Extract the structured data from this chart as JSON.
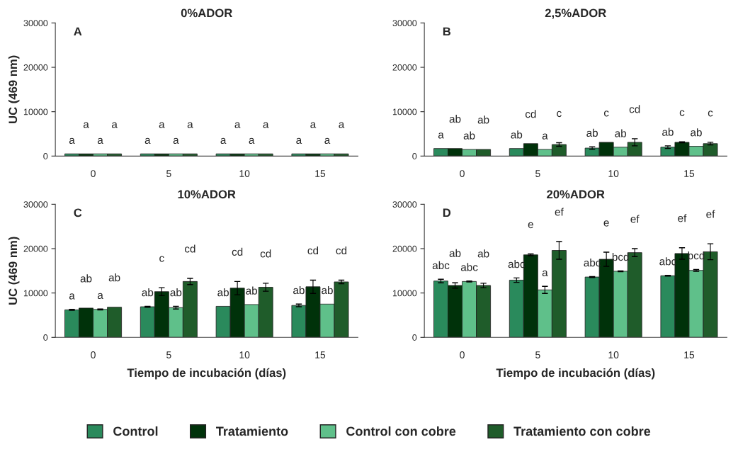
{
  "chart_data": [
    {
      "type": "bar",
      "title": "0%ADOR",
      "ylabel": "UC (469 nm)",
      "categories": [
        "0",
        "5",
        "10",
        "15"
      ],
      "ylim": [
        0,
        30000
      ],
      "yticks": [
        0,
        10000,
        20000,
        30000
      ],
      "legend": "bottom",
      "grid": false,
      "series": [
        {
          "name": "Control",
          "color": "#2a8a5c",
          "values": [
            500,
            500,
            500,
            500
          ],
          "value_labels": [
            "a",
            "a",
            "a",
            "a"
          ]
        },
        {
          "name": "Tratamiento",
          "color": "#00320a",
          "values": [
            500,
            500,
            500,
            500
          ],
          "value_labels": [
            "a",
            "a",
            "a",
            "a"
          ]
        },
        {
          "name": "Control con cobre",
          "color": "#5fc08a",
          "values": [
            500,
            500,
            500,
            500
          ],
          "value_labels": [
            "a",
            "a",
            "a",
            "a"
          ]
        },
        {
          "name": "Tratamiento con cobre",
          "color": "#1f5c2a",
          "values": [
            500,
            500,
            500,
            500
          ],
          "value_labels": [
            "a",
            "a",
            "a",
            "a"
          ]
        }
      ],
      "annotations": [
        "A"
      ]
    },
    {
      "type": "bar",
      "title": "2,5%ADOR",
      "categories": [
        "0",
        "5",
        "10",
        "15"
      ],
      "ylim": [
        0,
        30000
      ],
      "yticks": [
        0,
        10000,
        20000,
        30000
      ],
      "grid": false,
      "series": [
        {
          "color": "#2a8a5c",
          "values": [
            1700,
            1700,
            1800,
            2000
          ],
          "errors": [
            null,
            null,
            300,
            300
          ],
          "value_labels": [
            "a",
            "ab",
            "ab",
            "ab"
          ]
        },
        {
          "color": "#00320a",
          "values": [
            1700,
            2800,
            3100,
            3100
          ],
          "errors": [
            null,
            null,
            null,
            100
          ],
          "value_labels": [
            "ab",
            "cd",
            "c",
            "c"
          ]
        },
        {
          "color": "#5fc08a",
          "values": [
            1500,
            1500,
            2000,
            2200
          ],
          "value_labels": [
            "ab",
            "a",
            "ab",
            "ab"
          ]
        },
        {
          "color": "#1f5c2a",
          "values": [
            1500,
            2600,
            3100,
            2800
          ],
          "errors": [
            null,
            400,
            800,
            300
          ],
          "value_labels": [
            "ab",
            "c",
            "cd",
            "c"
          ]
        }
      ],
      "annotations": [
        "B"
      ]
    },
    {
      "type": "bar",
      "title": "10%ADOR",
      "xlabel": "Tiempo de incubación (días)",
      "ylabel": "UC (469 nm)",
      "categories": [
        "0",
        "5",
        "10",
        "15"
      ],
      "ylim": [
        0,
        30000
      ],
      "yticks": [
        0,
        10000,
        20000,
        30000
      ],
      "grid": false,
      "series": [
        {
          "color": "#2a8a5c",
          "values": [
            6200,
            6900,
            7000,
            7200
          ],
          "errors": [
            100,
            100,
            null,
            300
          ],
          "value_labels": [
            "a",
            "ab",
            "ab",
            "ab"
          ]
        },
        {
          "color": "#00320a",
          "values": [
            6600,
            10300,
            11100,
            11400
          ],
          "errors": [
            null,
            900,
            1500,
            1500
          ],
          "value_labels": [
            "ab",
            "c",
            "cd",
            "cd"
          ]
        },
        {
          "color": "#5fc08a",
          "values": [
            6300,
            6700,
            7400,
            7500
          ],
          "errors": [
            100,
            300,
            null,
            null
          ],
          "value_labels": [
            "a",
            "ab",
            "ab",
            "ab"
          ]
        },
        {
          "color": "#1f5c2a",
          "values": [
            6800,
            12600,
            11300,
            12500
          ],
          "errors": [
            null,
            700,
            900,
            400
          ],
          "value_labels": [
            "ab",
            "cd",
            "cd",
            "cd"
          ]
        }
      ],
      "annotations": [
        "C"
      ]
    },
    {
      "type": "bar",
      "title": "20%ADOR",
      "xlabel": "Tiempo de incubación (días)",
      "categories": [
        "0",
        "5",
        "10",
        "15"
      ],
      "ylim": [
        0,
        30000
      ],
      "yticks": [
        0,
        10000,
        20000,
        30000
      ],
      "grid": false,
      "series": [
        {
          "color": "#2a8a5c",
          "values": [
            12700,
            12900,
            13600,
            13900
          ],
          "errors": [
            400,
            500,
            100,
            100
          ],
          "value_labels": [
            "abc",
            "abc",
            "abc",
            "abc"
          ]
        },
        {
          "color": "#00320a",
          "values": [
            11700,
            18600,
            17600,
            18900
          ],
          "errors": [
            600,
            200,
            1600,
            1300
          ],
          "value_labels": [
            "ab",
            "e",
            "e",
            "ef"
          ]
        },
        {
          "color": "#5fc08a",
          "values": [
            12600,
            10700,
            14900,
            15100
          ],
          "errors": [
            100,
            800,
            100,
            200
          ],
          "value_labels": [
            "abc",
            "a",
            "bcd",
            "bcd"
          ]
        },
        {
          "color": "#1f5c2a",
          "values": [
            11700,
            19600,
            19100,
            19300
          ],
          "errors": [
            500,
            2000,
            900,
            1800
          ],
          "value_labels": [
            "ab",
            "ef",
            "ef",
            "ef"
          ]
        }
      ],
      "annotations": [
        "D"
      ]
    }
  ]
}
